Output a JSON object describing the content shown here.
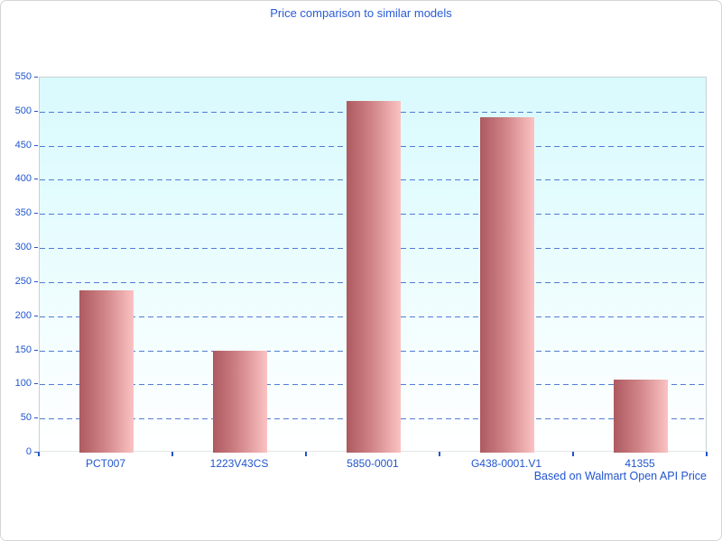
{
  "title": "Price comparison to similar models",
  "footer_note": "Based on Walmart Open API Price",
  "colors": {
    "text_blue": "#2155cc",
    "title_blue": "#2a5bd7",
    "gridline_blue": "#3566cc",
    "tick_blue": "#2155cc",
    "bar_dark": "#ad5a60",
    "bar_mid": "#cf8285",
    "bar_light": "#fbc2c2",
    "plot_bg_top": "#d9fafd",
    "plot_bg_bottom": "#ffffff",
    "plot_border": "#c8d1d4",
    "figure_border": "#d5d5d5"
  },
  "chart_data": {
    "type": "bar",
    "title": "Price comparison to similar models",
    "note": "Based on Walmart Open API Price",
    "categories": [
      "PCT007",
      "1223V43CS",
      "5850-0001",
      "G438-0001.V1",
      "41355"
    ],
    "values": [
      238,
      150,
      516,
      492,
      107
    ],
    "xlabel": "",
    "ylabel": "",
    "ylim": [
      0,
      550
    ],
    "ytick_step": 50,
    "yticks": [
      0,
      50,
      100,
      150,
      200,
      250,
      300,
      350,
      400,
      450,
      500,
      550
    ],
    "grid": "horizontal-dashed",
    "legend": "none",
    "bar_color_gradient": [
      "#ad5a60",
      "#fbc2c2"
    ],
    "note_position": "bottom-right"
  }
}
